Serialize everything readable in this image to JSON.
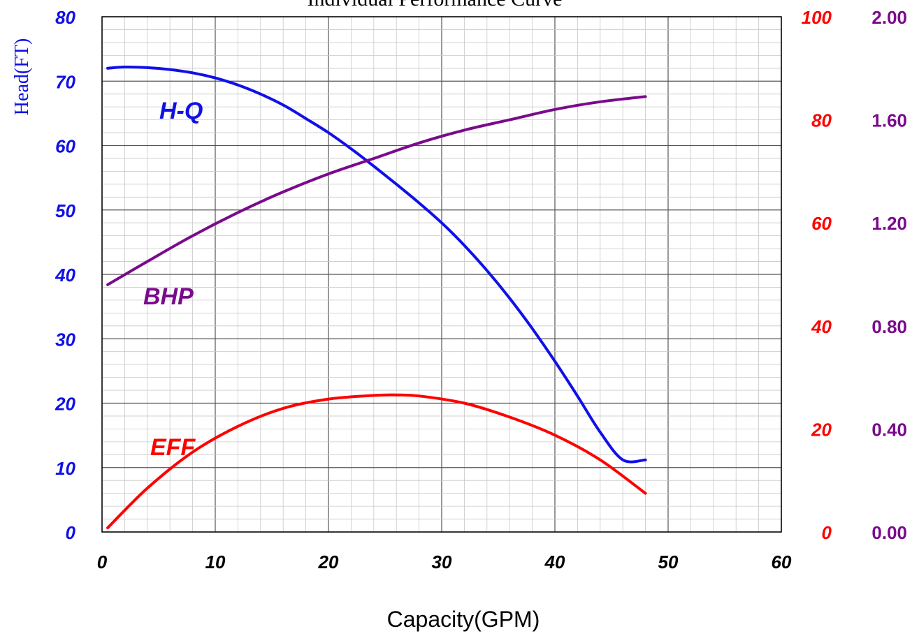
{
  "chart_data": {
    "type": "line",
    "title": "Individual Performance Curve",
    "xlabel": "Capacity(GPM)",
    "ylabel": "Head(FT)",
    "xlim": [
      0,
      60
    ],
    "ylim": [
      0,
      80
    ],
    "x_ticks": [
      "0",
      "10",
      "20",
      "30",
      "40",
      "50",
      "60"
    ],
    "y_ticks_left": [
      "0",
      "10",
      "20",
      "30",
      "40",
      "50",
      "60",
      "70",
      "80"
    ],
    "y_ticks_eff": [
      "0",
      "20",
      "40",
      "60",
      "80",
      "100"
    ],
    "y_ticks_bhp": [
      "0.00",
      "0.40",
      "0.80",
      "1.20",
      "1.60",
      "2.00"
    ],
    "eff_range": [
      0,
      100
    ],
    "bhp_range": [
      0,
      2.0
    ],
    "grid": true,
    "colors": {
      "head": "#1010e8",
      "eff": "#ff0000",
      "bhp": "#7a0a8c"
    },
    "series": [
      {
        "name": "H-Q",
        "axis": "head",
        "x": [
          0.5,
          2,
          4,
          6,
          8,
          10,
          12,
          14,
          16,
          18,
          20,
          22,
          24,
          26,
          28,
          30,
          32,
          34,
          36,
          38,
          40,
          42,
          44,
          46,
          48
        ],
        "y": [
          72.0,
          72.2,
          72.1,
          71.8,
          71.3,
          70.5,
          69.4,
          68.0,
          66.3,
          64.2,
          62.0,
          59.5,
          56.8,
          54.0,
          51.1,
          48.0,
          44.5,
          40.6,
          36.3,
          31.6,
          26.5,
          21.1,
          15.5,
          11.2,
          11.2
        ]
      },
      {
        "name": "BHP",
        "axis": "bhp",
        "x": [
          0.5,
          4,
          8,
          12,
          16,
          20,
          24,
          28,
          32,
          36,
          40,
          44,
          48
        ],
        "y": [
          0.96,
          1.05,
          1.15,
          1.24,
          1.32,
          1.39,
          1.45,
          1.51,
          1.56,
          1.6,
          1.64,
          1.67,
          1.69
        ]
      },
      {
        "name": "EFF",
        "axis": "eff",
        "x": [
          0.5,
          4,
          8,
          12,
          16,
          20,
          24,
          26,
          28,
          32,
          36,
          40,
          44,
          48
        ],
        "y": [
          0.8,
          8.5,
          15.5,
          20.5,
          24.0,
          25.8,
          26.5,
          26.6,
          26.4,
          25.0,
          22.3,
          18.8,
          14.0,
          7.5
        ]
      }
    ],
    "series_labels": [
      "H-Q",
      "BHP",
      "EFF"
    ]
  }
}
